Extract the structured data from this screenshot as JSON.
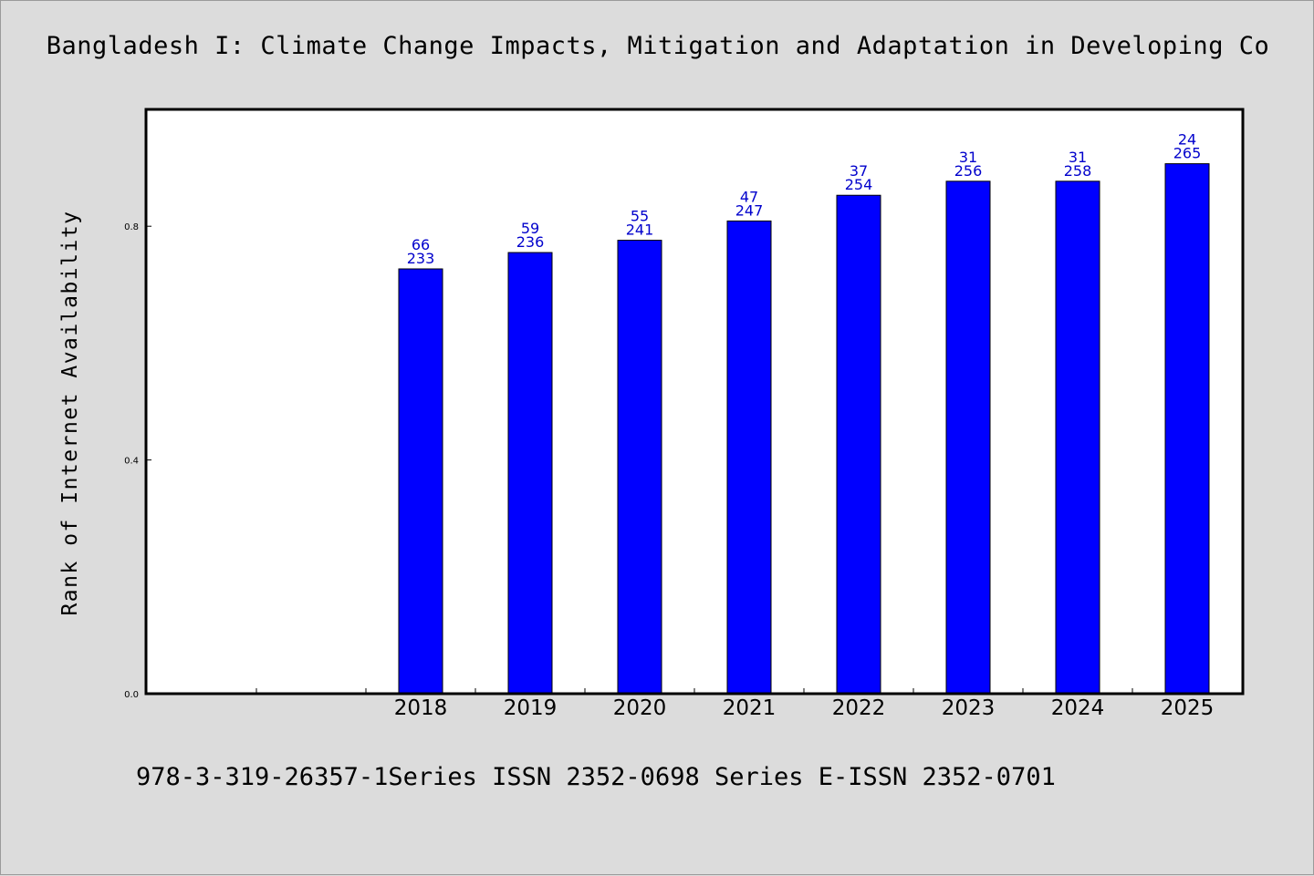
{
  "title": "Bangladesh I: Climate Change Impacts, Mitigation and Adaptation in Developing Co",
  "footer": "978-3-319-26357-1Series ISSN 2352-0698 Series E-ISSN 2352-0701",
  "colors": {
    "bar": "#0000ff",
    "bar_stroke": "#000000",
    "label": "#0000cc",
    "background": "#dcdcdc",
    "plot": "#ffffff"
  },
  "chart_data": {
    "type": "bar",
    "title": "Bangladesh I: Climate Change Impacts, Mitigation and Adaptation in Developing Co",
    "xlabel": "",
    "ylabel": "Rank of Internet Availability",
    "ylim": [
      0,
      1.0
    ],
    "yticks": [
      0.0,
      0.4,
      0.8
    ],
    "ytick_labels": [
      "0.0",
      "0.4",
      "0.8"
    ],
    "categories": [
      "2018",
      "2019",
      "2020",
      "2021",
      "2022",
      "2023",
      "2024",
      "2025"
    ],
    "values": [
      0.727,
      0.755,
      0.776,
      0.809,
      0.853,
      0.877,
      0.877,
      0.907
    ],
    "labels_top": [
      "66",
      "59",
      "55",
      "47",
      "37",
      "31",
      "31",
      "24"
    ],
    "labels_bottom": [
      "233",
      "236",
      "241",
      "247",
      "254",
      "256",
      "258",
      "265"
    ],
    "grid": false,
    "legend": "none"
  }
}
